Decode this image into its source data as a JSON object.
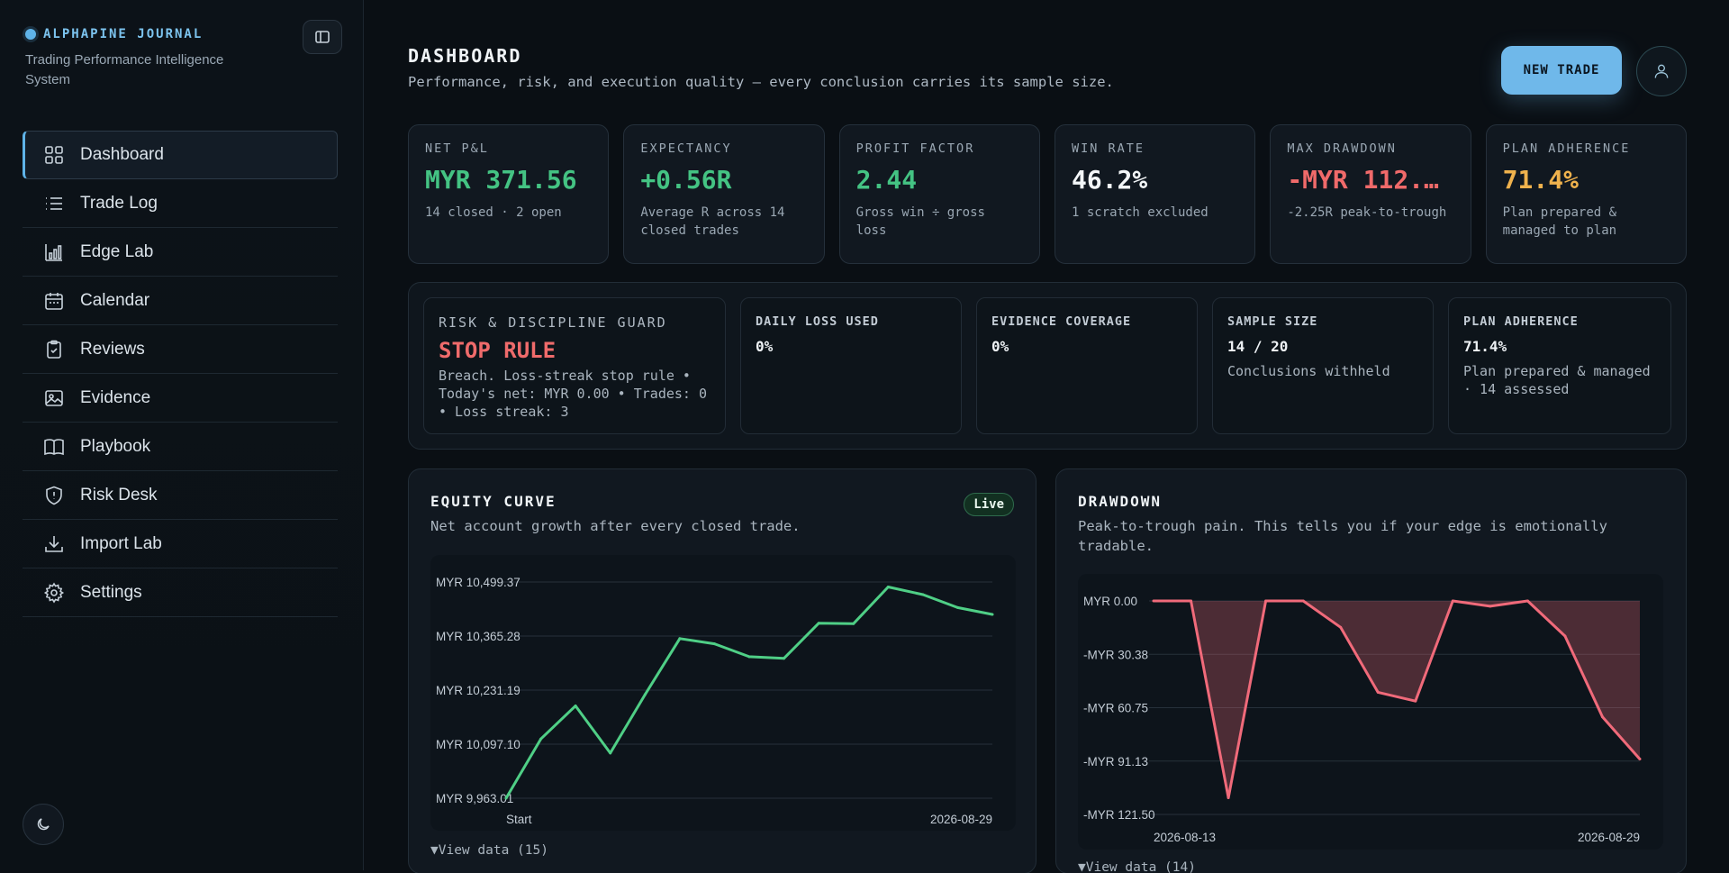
{
  "brand": {
    "name": "ALPHAPINE JOURNAL",
    "subtitle": "Trading Performance Intelligence System"
  },
  "sidebar": {
    "items": [
      {
        "label": "Dashboard",
        "icon": "grid-icon",
        "active": true
      },
      {
        "label": "Trade Log",
        "icon": "list-icon"
      },
      {
        "label": "Edge Lab",
        "icon": "bar-chart-icon"
      },
      {
        "label": "Calendar",
        "icon": "calendar-icon"
      },
      {
        "label": "Reviews",
        "icon": "clipboard-check-icon"
      },
      {
        "label": "Evidence",
        "icon": "image-icon"
      },
      {
        "label": "Playbook",
        "icon": "book-icon"
      },
      {
        "label": "Risk Desk",
        "icon": "shield-icon"
      },
      {
        "label": "Import Lab",
        "icon": "download-icon"
      },
      {
        "label": "Settings",
        "icon": "gear-icon"
      }
    ]
  },
  "header": {
    "title": "DASHBOARD",
    "subtitle": "Performance, risk, and execution quality — every conclusion carries its sample size.",
    "new_trade_label": "NEW TRADE"
  },
  "colors": {
    "green": "#44c383",
    "red": "#f06a6a",
    "amber": "#f0b24d",
    "accent": "#6fb8ea"
  },
  "kpis": [
    {
      "label": "NET P&L",
      "value": "MYR 371.56",
      "note": "14 closed · 2 open",
      "color": "#44c383"
    },
    {
      "label": "EXPECTANCY",
      "value": "+0.56R",
      "note": "Average R across 14 closed trades",
      "color": "#44c383"
    },
    {
      "label": "PROFIT FACTOR",
      "value": "2.44",
      "note": "Gross win ÷ gross loss",
      "color": "#44c383"
    },
    {
      "label": "WIN RATE",
      "value": "46.2%",
      "note": "1 scratch excluded",
      "color": "#f3f6f8"
    },
    {
      "label": "MAX DRAWDOWN",
      "value": "-MYR 112.…",
      "note": "-2.25R peak-to-trough",
      "color": "#f06a6a"
    },
    {
      "label": "PLAN ADHERENCE",
      "value": "71.4%",
      "note": "Plan prepared & managed to plan",
      "color": "#f0b24d"
    }
  ],
  "guard": {
    "label": "RISK & DISCIPLINE GUARD",
    "status": "STOP RULE",
    "note": "Breach. Loss-streak stop rule • Today's net: MYR 0.00 • Trades: 0 • Loss streak: 3"
  },
  "guard_metrics": [
    {
      "label": "DAILY LOSS USED",
      "value": "0%",
      "note": ""
    },
    {
      "label": "EVIDENCE COVERAGE",
      "value": "0%",
      "note": ""
    },
    {
      "label": "SAMPLE SIZE",
      "value": "14 / 20",
      "note": "Conclusions withheld"
    },
    {
      "label": "PLAN ADHERENCE",
      "value": "71.4%",
      "note": "Plan prepared & managed · 14 assessed"
    }
  ],
  "equity": {
    "title": "EQUITY CURVE",
    "subtitle": "Net account growth after every closed trade.",
    "badge": "Live",
    "view_data": "▼View data (15)"
  },
  "drawdown": {
    "title": "DRAWDOWN",
    "subtitle": "Peak-to-trough pain. This tells you if your edge is emotionally tradable.",
    "view_data": "▼View data (14)"
  },
  "chart_data": [
    {
      "type": "line",
      "title": "EQUITY CURVE",
      "y_ticks": [
        "MYR 10,499.37",
        "MYR 10,365.28",
        "MYR 10,231.19",
        "MYR 10,097.10",
        "MYR 9,963.01"
      ],
      "ylim": [
        9963.01,
        10499.37
      ],
      "x_labels": [
        "Start",
        "2026-08-29"
      ],
      "values": [
        9963,
        10110,
        10192,
        10075,
        10220,
        10359,
        10346,
        10314,
        10310,
        10397,
        10396,
        10487,
        10468,
        10436,
        10419
      ],
      "color": "#4fcf86"
    },
    {
      "type": "area",
      "title": "DRAWDOWN",
      "y_ticks": [
        "MYR 0.00",
        "-MYR 30.38",
        "-MYR 60.75",
        "-MYR 91.13",
        "-MYR 121.50"
      ],
      "ylim": [
        -121.5,
        0
      ],
      "x_labels": [
        "2026-08-13",
        "2026-08-29"
      ],
      "values": [
        0,
        0,
        -112,
        0,
        0,
        -15,
        -52,
        -57,
        0,
        -3,
        0,
        -20,
        -66,
        -90
      ],
      "color": "#f06a7a"
    }
  ]
}
